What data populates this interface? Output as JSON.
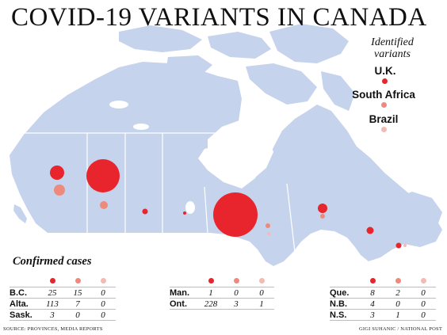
{
  "title": "COVID-19 VARIANTS IN CANADA",
  "legend": {
    "heading_line1": "Identified",
    "heading_line2": "variants",
    "items": [
      {
        "label": "U.K.",
        "color": "#e8242c"
      },
      {
        "label": "South Africa",
        "color": "#ee8a7b"
      },
      {
        "label": "Brazil",
        "color": "#f5b9b5"
      }
    ]
  },
  "colors": {
    "land": "#c6d3ec",
    "water": "#ffffff",
    "border": "#ffffff"
  },
  "confirmed_cases_title": "Confirmed cases",
  "tables": [
    {
      "rows": [
        {
          "province": "B.C.",
          "uk": "25",
          "sa": "15",
          "br": "0"
        },
        {
          "province": "Alta.",
          "uk": "113",
          "sa": "7",
          "br": "0"
        },
        {
          "province": "Sask.",
          "uk": "3",
          "sa": "0",
          "br": "0"
        }
      ]
    },
    {
      "rows": [
        {
          "province": "Man.",
          "uk": "1",
          "sa": "0",
          "br": "0"
        },
        {
          "province": "Ont.",
          "uk": "228",
          "sa": "3",
          "br": "1"
        }
      ]
    },
    {
      "rows": [
        {
          "province": "Que.",
          "uk": "8",
          "sa": "2",
          "br": "0"
        },
        {
          "province": "N.B.",
          "uk": "4",
          "sa": "0",
          "br": "0"
        },
        {
          "province": "N.S.",
          "uk": "3",
          "sa": "1",
          "br": "0"
        }
      ]
    }
  ],
  "source": "SOURCE: PROVINCES, MEDIA REPORTS",
  "credit": "GIGI SUHANIC / NATIONAL POST"
}
